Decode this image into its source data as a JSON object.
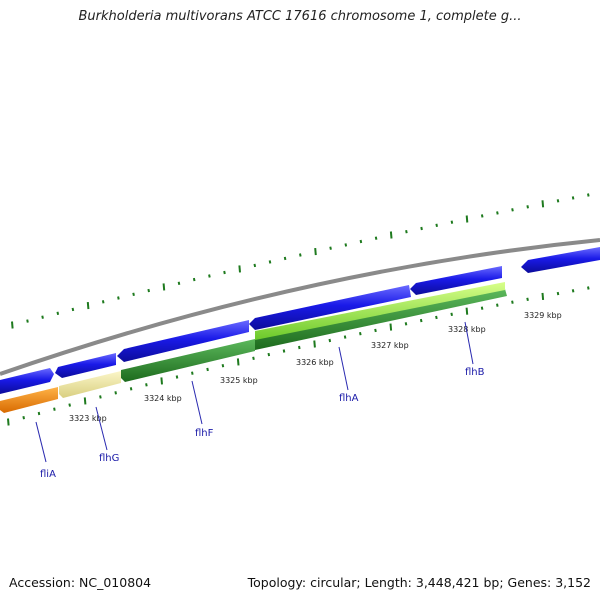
{
  "title": "Burkholderia multivorans ATCC 17616 chromosome 1, complete g...",
  "footer": {
    "accession": "Accession: NC_010804",
    "summary": "Topology: circular; Length: 3,448,421 bp; Genes: 3,152"
  },
  "colors": {
    "forward_gene": "#1515e0",
    "backbone": "#8a8a8a",
    "tick": "#1e7a1e",
    "fliA": "#f08a10",
    "flhG": "#ece6a0",
    "flhF": "#2f8f2f",
    "flhA": "#3aa33a",
    "flhB": "#8ee23a",
    "label": "#1a1aa8"
  },
  "kbp_labels": [
    "3323 kbp",
    "3324 kbp",
    "3325 kbp",
    "3326 kbp",
    "3327 kbp",
    "3328 kbp",
    "3329 kbp"
  ],
  "genes": [
    {
      "name": "fliA",
      "color_key": "fliA"
    },
    {
      "name": "flhG",
      "color_key": "flhG"
    },
    {
      "name": "flhF",
      "color_key": "flhF"
    },
    {
      "name": "flhA",
      "color_key": "flhA"
    },
    {
      "name": "flhB",
      "color_key": "flhB"
    }
  ]
}
